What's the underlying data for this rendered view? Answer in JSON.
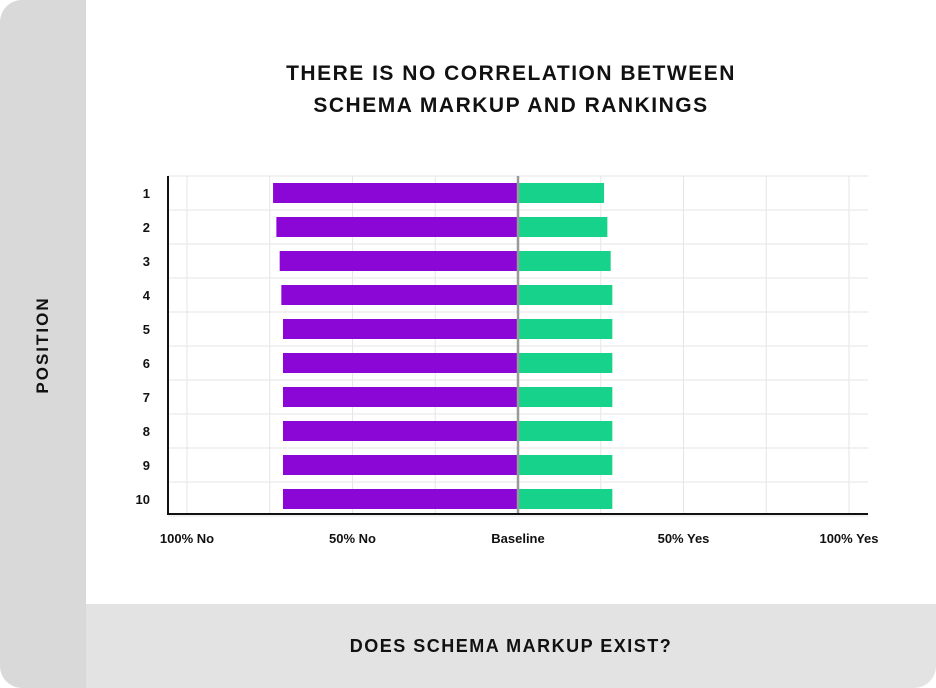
{
  "chart_data": {
    "type": "bar",
    "orientation": "horizontal-diverging",
    "title": [
      "THERE IS NO CORRELATION BETWEEN",
      "SCHEMA MARKUP AND RANKINGS"
    ],
    "xlabel": "DOES SCHEMA MARKUP EXIST?",
    "ylabel": "POSITION",
    "categories": [
      "1",
      "2",
      "3",
      "4",
      "5",
      "6",
      "7",
      "8",
      "9",
      "10"
    ],
    "x_ticks": [
      "100% No",
      "50% No",
      "Baseline",
      "50% Yes",
      "100% Yes"
    ],
    "xlim": [
      -100,
      100
    ],
    "series": [
      {
        "name": "No",
        "color": "#8a07d6",
        "values": [
          -74,
          -73,
          -72,
          -71.5,
          -71,
          -71,
          -71,
          -71,
          -71,
          -71
        ]
      },
      {
        "name": "Yes",
        "color": "#16d28a",
        "values": [
          26,
          27,
          28,
          28.5,
          28.5,
          28.5,
          28.5,
          28.5,
          28.5,
          28.5
        ]
      }
    ],
    "grid": true
  },
  "colors": {
    "no": "#8a07d6",
    "yes": "#16d28a",
    "baseline": "#9a9a9a",
    "band": "#d9d9d9"
  }
}
